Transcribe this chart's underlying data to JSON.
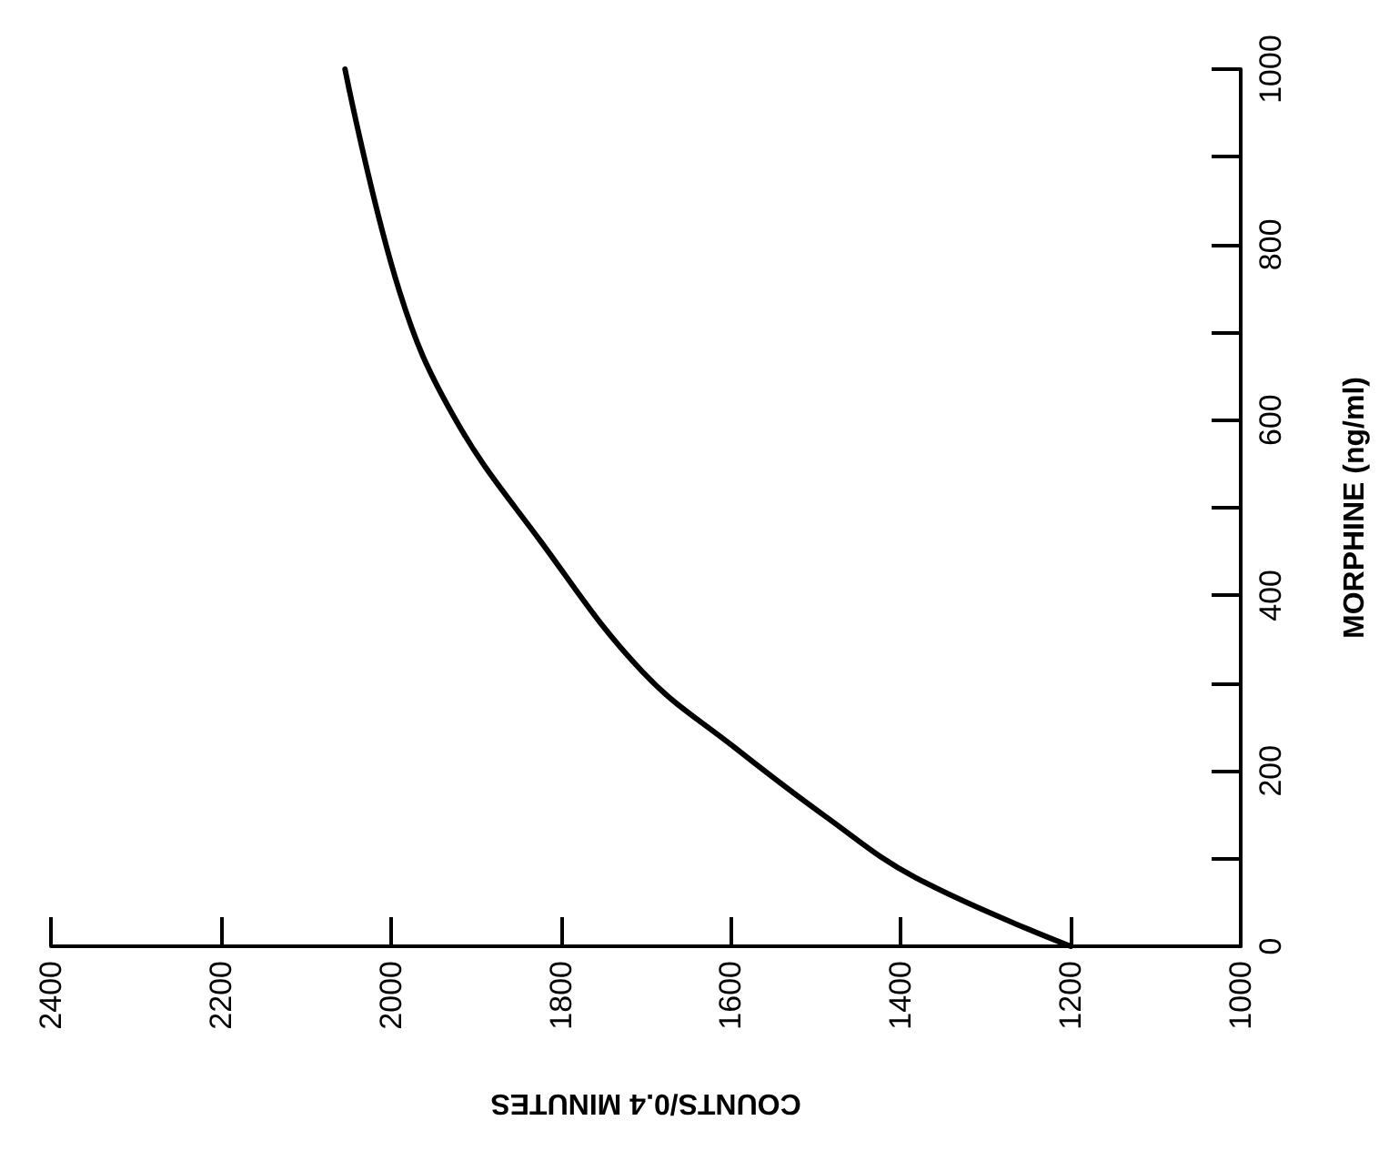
{
  "chart_data": {
    "type": "line",
    "xlabel": "COUNTS/0.4 MINUTES",
    "ylabel": "MORPHINE (ng/ml)",
    "x": [
      1200,
      1382,
      1490,
      1596,
      1704,
      1824,
      1926,
      1990,
      2054
    ],
    "series": [
      {
        "color": "#000000",
        "values": [
          0,
          78,
          149,
          227,
          313,
          462,
          604,
          747,
          1000
        ]
      }
    ],
    "xlim": [
      2400,
      1000
    ],
    "xticks": [
      2400,
      2200,
      2000,
      1800,
      1600,
      1400,
      1200,
      1000
    ],
    "ylim": [
      0,
      1000
    ],
    "yticks": [
      0,
      {
        "value": 100,
        "label": null
      },
      200,
      {
        "value": 300,
        "label": null
      },
      400,
      {
        "value": 500,
        "label": null
      },
      600,
      {
        "value": 700,
        "label": null
      },
      800,
      {
        "value": 900,
        "label": null
      },
      1000
    ],
    "grid": false,
    "marker": "none",
    "line_style": "solid"
  }
}
